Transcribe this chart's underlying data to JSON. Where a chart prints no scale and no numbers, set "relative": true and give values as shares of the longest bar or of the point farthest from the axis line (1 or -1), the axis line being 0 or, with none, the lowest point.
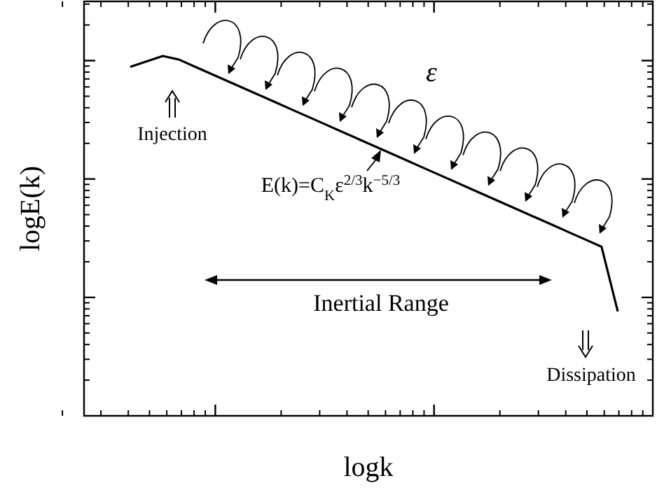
{
  "chart_data": {
    "type": "line",
    "relative": true,
    "xlabel": "logk",
    "ylabel": "logE(k)",
    "categories": [
      null,
      null,
      null,
      null,
      null,
      null,
      null,
      null,
      null,
      null,
      null,
      null,
      null,
      null,
      null,
      null,
      null,
      null,
      null,
      null,
      null,
      null,
      null,
      null,
      null,
      null,
      null,
      null,
      null,
      null,
      null
    ],
    "series": [
      {
        "color": "#000000",
        "values": [
          0.97,
          0.985,
          1.0,
          0.99,
          0.97,
          0.95,
          0.93,
          0.91,
          0.89,
          0.87,
          0.85,
          0.83,
          0.81,
          0.79,
          0.77,
          0.75,
          0.73,
          0.71,
          0.69,
          0.67,
          0.65,
          0.63,
          0.61,
          0.59,
          0.57,
          0.55,
          0.53,
          0.51,
          0.49,
          0.47,
          0.29
        ]
      }
    ],
    "annotations": [
      "ε",
      "Injection",
      "E(k)=C$_{K}$ε$^{2/3}$k$^{−5/3}$",
      "Inertial Range",
      "Dissipation"
    ],
    "marker": "none",
    "line_style": "solid"
  }
}
